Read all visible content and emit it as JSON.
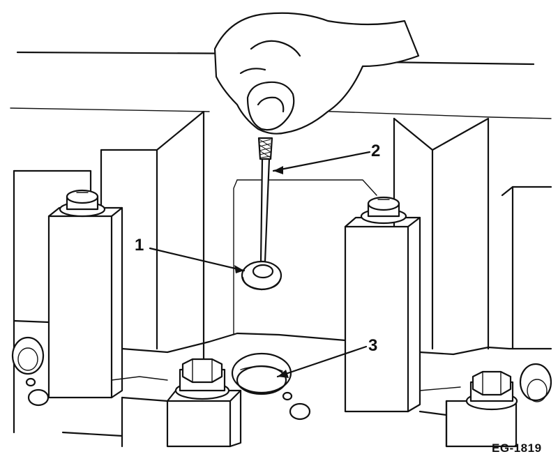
{
  "figure": {
    "code": "EG-1819",
    "colors": {
      "line": "#111111",
      "background": "#ffffff"
    }
  },
  "callouts": [
    {
      "num": "1",
      "part": "washer"
    },
    {
      "num": "2",
      "part": "pick-up-tool"
    },
    {
      "num": "3",
      "part": "bolt-hole"
    }
  ]
}
